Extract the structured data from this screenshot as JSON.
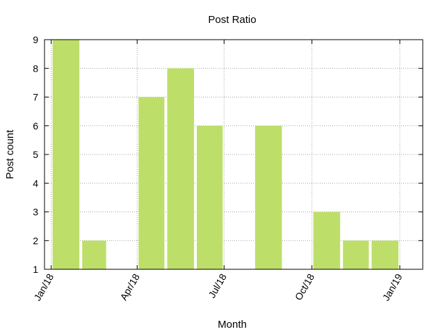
{
  "chart_data": {
    "type": "bar",
    "title": "Post Ratio",
    "xlabel": "Month",
    "ylabel": "Post count",
    "ylim": [
      1,
      9
    ],
    "yticks": [
      1,
      2,
      3,
      4,
      5,
      6,
      7,
      8,
      9
    ],
    "xrange": [
      "2017-12-25",
      "2019-01-25"
    ],
    "xticks": [
      {
        "date": "2018-01-01",
        "label": "Jan/18"
      },
      {
        "date": "2018-04-01",
        "label": "Apr/18"
      },
      {
        "date": "2018-07-01",
        "label": "Jul/18"
      },
      {
        "date": "2018-10-01",
        "label": "Oct/18"
      },
      {
        "date": "2019-01-01",
        "label": "Jan/19"
      }
    ],
    "series": [
      {
        "color": "#bddf6a",
        "points": [
          {
            "month": "2018-01",
            "value": 9
          },
          {
            "month": "2018-02",
            "value": 2
          },
          {
            "month": "2018-04",
            "value": 7
          },
          {
            "month": "2018-05",
            "value": 8
          },
          {
            "month": "2018-06",
            "value": 6
          },
          {
            "month": "2018-08",
            "value": 6
          },
          {
            "month": "2018-10",
            "value": 3
          },
          {
            "month": "2018-11",
            "value": 2
          },
          {
            "month": "2018-12",
            "value": 2
          }
        ]
      }
    ],
    "grid": true
  }
}
